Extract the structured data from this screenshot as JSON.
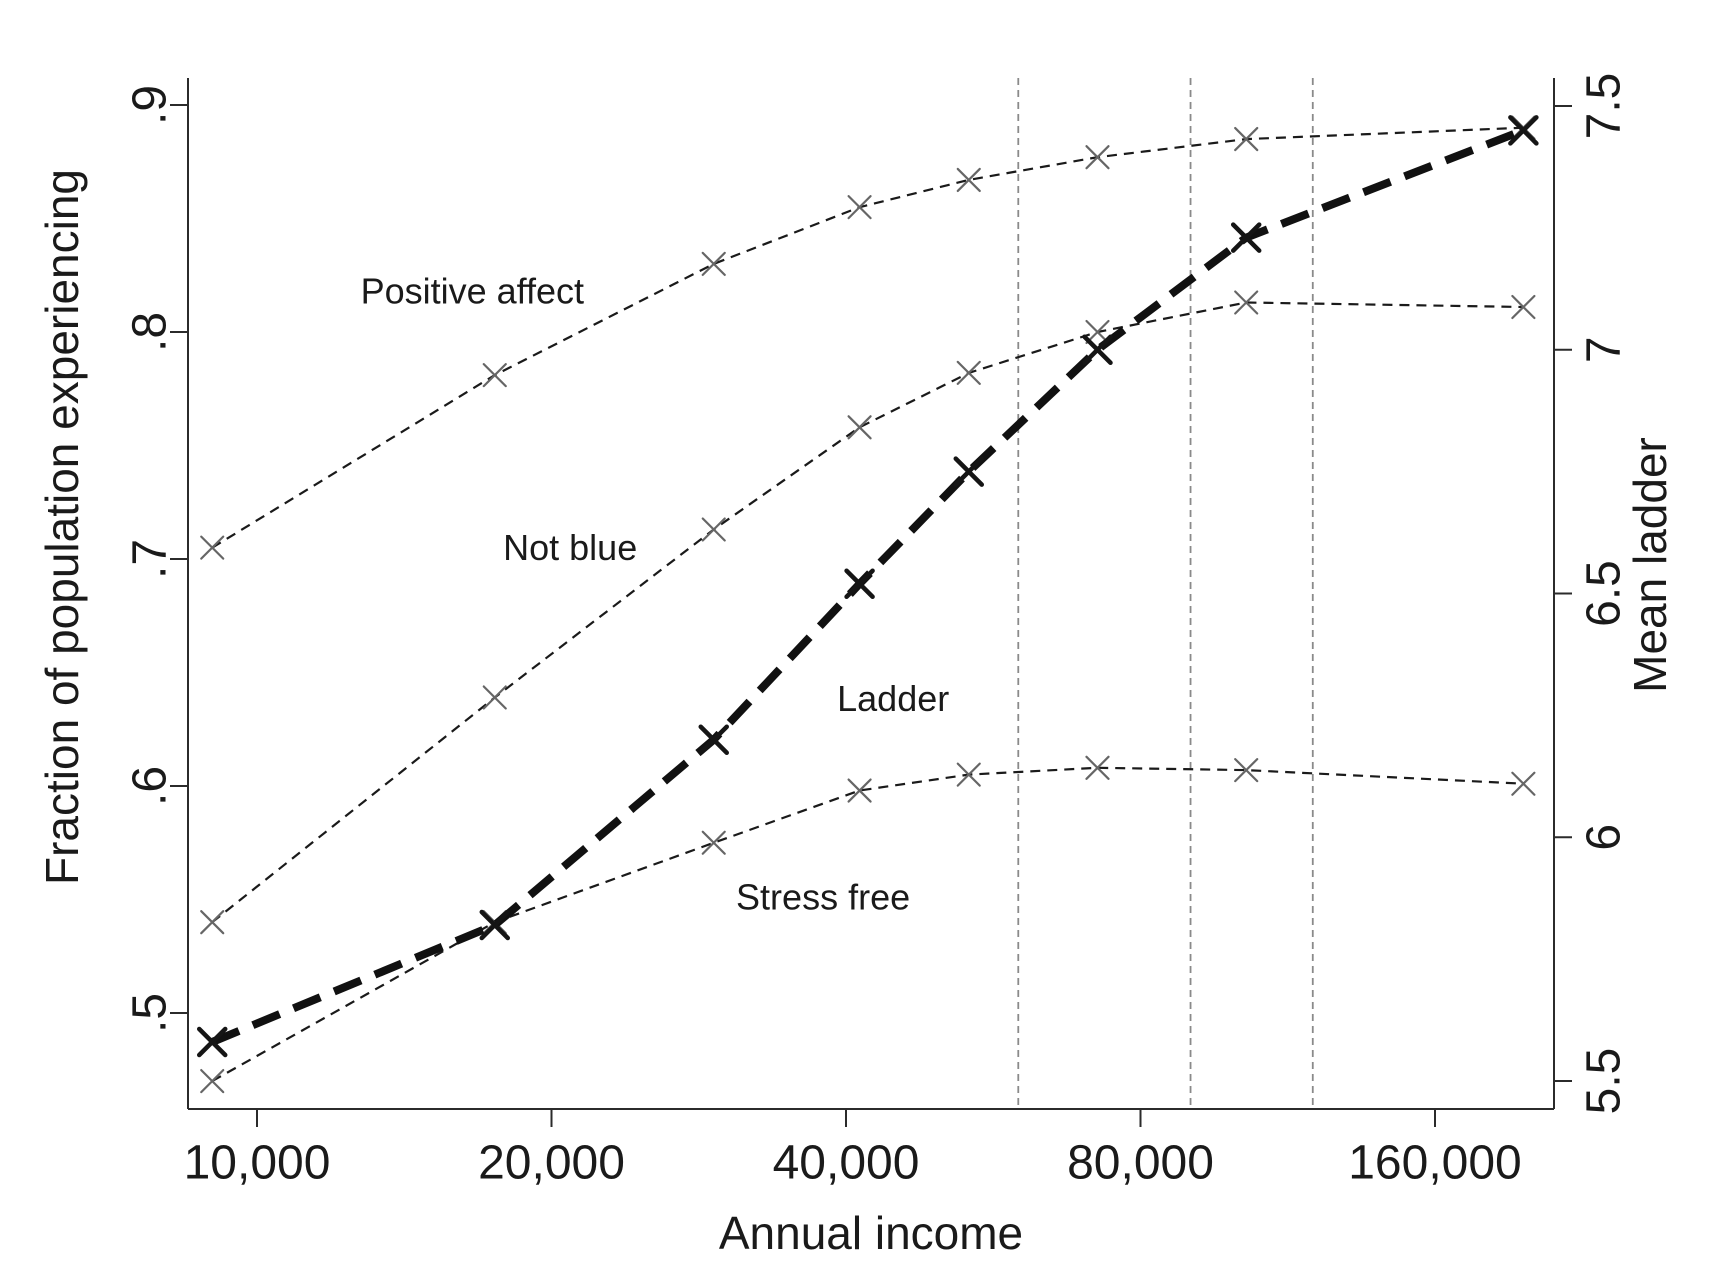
{
  "figure": {
    "background": "#ffffff",
    "ink_color": "#1a1a1a",
    "thin_marker_color": "#666666",
    "thick_marker_color": "#151515",
    "reference_line_color": "#8a8a8a",
    "axis_color": "#2b2b2b"
  },
  "chart_data": {
    "type": "line",
    "title": "",
    "x_axis": {
      "label": "Annual income",
      "scale": "log2",
      "ticks": [
        10000,
        20000,
        40000,
        80000,
        160000
      ],
      "tick_labels": [
        "10,000",
        "20,000",
        "40,000",
        "80,000",
        "160,000"
      ]
    },
    "left_axis": {
      "label": "Fraction of population experiencing",
      "range": [
        0.5,
        0.9
      ],
      "ticks": [
        0.9,
        0.8,
        0.7,
        0.6,
        0.5
      ],
      "tick_labels": [
        ".9",
        ".8",
        ".7",
        ".6",
        ".5"
      ]
    },
    "right_axis": {
      "label": "Mean ladder",
      "range": [
        5.5,
        7.5
      ],
      "ticks": [
        7.5,
        7.0,
        6.5,
        6.0,
        5.5
      ],
      "tick_labels": [
        "7.5",
        "7",
        "6.5",
        "6",
        "5.5"
      ]
    },
    "x": [
      9000,
      17500,
      29300,
      41300,
      53400,
      72300,
      102600,
      197000
    ],
    "series": [
      {
        "name": "Positive affect",
        "axis": "left",
        "style": "thin-dashed",
        "values": [
          0.705,
          0.781,
          0.83,
          0.855,
          0.867,
          0.877,
          0.885,
          0.89
        ]
      },
      {
        "name": "Not blue",
        "axis": "left",
        "style": "thin-dashed",
        "values": [
          0.54,
          0.639,
          0.713,
          0.758,
          0.782,
          0.8,
          0.813,
          0.811
        ]
      },
      {
        "name": "Stress free",
        "axis": "left",
        "style": "thin-dashed",
        "values": [
          0.47,
          0.54,
          0.575,
          0.598,
          0.605,
          0.608,
          0.607,
          0.601
        ]
      },
      {
        "name": "Ladder",
        "axis": "right",
        "style": "thick-dashed",
        "values": [
          5.58,
          5.82,
          6.2,
          6.52,
          6.75,
          7.0,
          7.23,
          7.45
        ]
      }
    ],
    "reference_lines": {
      "incomes": [
        60000,
        90000,
        120000
      ]
    },
    "annotations": [
      {
        "text": "Positive affect",
        "axis": "left",
        "income": 16600,
        "value": 0.818
      },
      {
        "text": "Not blue",
        "axis": "left",
        "income": 20900,
        "value": 0.705
      },
      {
        "text": "Ladder",
        "axis": "right",
        "income": 44700,
        "value": 6.285
      },
      {
        "text": "Stress free",
        "axis": "left",
        "income": 37900,
        "value": 0.551
      }
    ],
    "legend": {
      "position": "none",
      "grid": "off"
    }
  }
}
